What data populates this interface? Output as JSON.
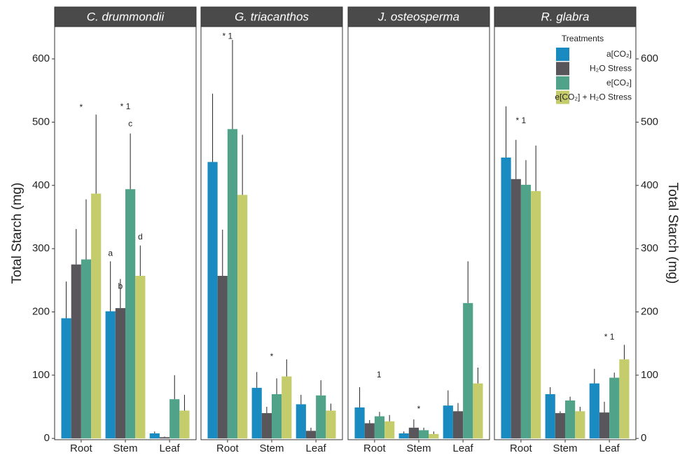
{
  "chart_data": [
    {
      "type": "bar",
      "title": "C. drummondii",
      "y_label": "Total Starch (mg)",
      "categories": [
        "Root",
        "Stem",
        "Leaf"
      ],
      "series": [
        {
          "name": "a[CO₂]",
          "color": "#1a8bc0",
          "values": [
            190,
            201,
            8
          ],
          "errors": [
            58,
            79,
            3
          ]
        },
        {
          "name": "H₂O Stress",
          "color": "#58555b",
          "values": [
            275,
            206,
            2
          ],
          "errors": [
            56,
            46,
            1
          ]
        },
        {
          "name": "e[CO₂]",
          "color": "#50a388",
          "values": [
            283,
            394,
            62
          ],
          "errors": [
            95,
            88,
            38
          ]
        },
        {
          "name": "e[CO₂] + H₂O Stress",
          "color": "#c5cc6b",
          "values": [
            387,
            257,
            44
          ],
          "errors": [
            125,
            48,
            25
          ]
        }
      ],
      "annotations": [
        {
          "text": "*",
          "x": 0,
          "y": 523
        },
        {
          "text": "* 1",
          "x": 1,
          "y": 524
        },
        {
          "text": "a",
          "x": 0.6625,
          "y": 292
        },
        {
          "text": "b",
          "x": 0.8875,
          "y": 240
        },
        {
          "text": "c",
          "x": 1.1125,
          "y": 497
        },
        {
          "text": "d",
          "x": 1.3375,
          "y": 318
        }
      ],
      "ylim": [
        -2,
        651
      ],
      "yticks": [
        0,
        100,
        200,
        300,
        400,
        500,
        600
      ]
    },
    {
      "type": "bar",
      "title": "G. triacanthos",
      "categories": [
        "Root",
        "Stem",
        "Leaf"
      ],
      "series": [
        {
          "name": "a[CO₂]",
          "color": "#1a8bc0",
          "values": [
            437,
            80,
            54
          ],
          "errors": [
            108,
            25,
            15
          ]
        },
        {
          "name": "H₂O Stress",
          "color": "#58555b",
          "values": [
            257,
            40,
            12
          ],
          "errors": [
            73,
            10,
            5
          ]
        },
        {
          "name": "e[CO₂]",
          "color": "#50a388",
          "values": [
            489,
            70,
            68
          ],
          "errors": [
            141,
            25,
            24
          ]
        },
        {
          "name": "e[CO₂] + H₂O Stress",
          "color": "#c5cc6b",
          "values": [
            385,
            98,
            44
          ],
          "errors": [
            95,
            27,
            11
          ]
        }
      ],
      "annotations": [
        {
          "text": "* 1",
          "x": 0,
          "y": 635
        },
        {
          "text": "*",
          "x": 1,
          "y": 129
        }
      ],
      "ylim": [
        -2,
        651
      ]
    },
    {
      "type": "bar",
      "title": "J. osteosperma",
      "categories": [
        "Root",
        "Stem",
        "Leaf"
      ],
      "series": [
        {
          "name": "a[CO₂]",
          "color": "#1a8bc0",
          "values": [
            49,
            8,
            52
          ],
          "errors": [
            32,
            3,
            24
          ]
        },
        {
          "name": "H₂O Stress",
          "color": "#58555b",
          "values": [
            24,
            17,
            43
          ],
          "errors": [
            5,
            13,
            13
          ]
        },
        {
          "name": "e[CO₂]",
          "color": "#50a388",
          "values": [
            35,
            13,
            214
          ],
          "errors": [
            7,
            4,
            66
          ]
        },
        {
          "name": "e[CO₂] + H₂O Stress",
          "color": "#c5cc6b",
          "values": [
            27,
            7,
            87
          ],
          "errors": [
            10,
            4,
            25
          ]
        }
      ],
      "annotations": [
        {
          "text": "1",
          "x": 0.1,
          "y": 100
        },
        {
          "text": "*",
          "x": 1,
          "y": 46
        }
      ],
      "ylim": [
        -2,
        651
      ]
    },
    {
      "type": "bar",
      "title": "R. glabra",
      "y_label": "Total Starch (mg)",
      "categories": [
        "Root",
        "Stem",
        "Leaf"
      ],
      "series": [
        {
          "name": "a[CO₂]",
          "color": "#1a8bc0",
          "values": [
            444,
            70,
            87
          ],
          "errors": [
            81,
            11,
            23
          ]
        },
        {
          "name": "H₂O Stress",
          "color": "#58555b",
          "values": [
            410,
            40,
            41
          ],
          "errors": [
            62,
            3,
            17
          ]
        },
        {
          "name": "e[CO₂]",
          "color": "#50a388",
          "values": [
            401,
            60,
            96
          ],
          "errors": [
            39,
            6,
            8
          ]
        },
        {
          "name": "e[CO₂] + H₂O Stress",
          "color": "#c5cc6b",
          "values": [
            391,
            43,
            125
          ],
          "errors": [
            72,
            7,
            23
          ]
        }
      ],
      "annotations": [
        {
          "text": "* 1",
          "x": 0,
          "y": 502
        },
        {
          "text": "* 1",
          "x": 2,
          "y": 160
        }
      ],
      "legend_title": "Treatments",
      "legend": "top-right",
      "ylim": [
        -2,
        651
      ],
      "yticks": [
        0,
        100,
        200,
        300,
        400,
        500,
        600
      ]
    }
  ]
}
